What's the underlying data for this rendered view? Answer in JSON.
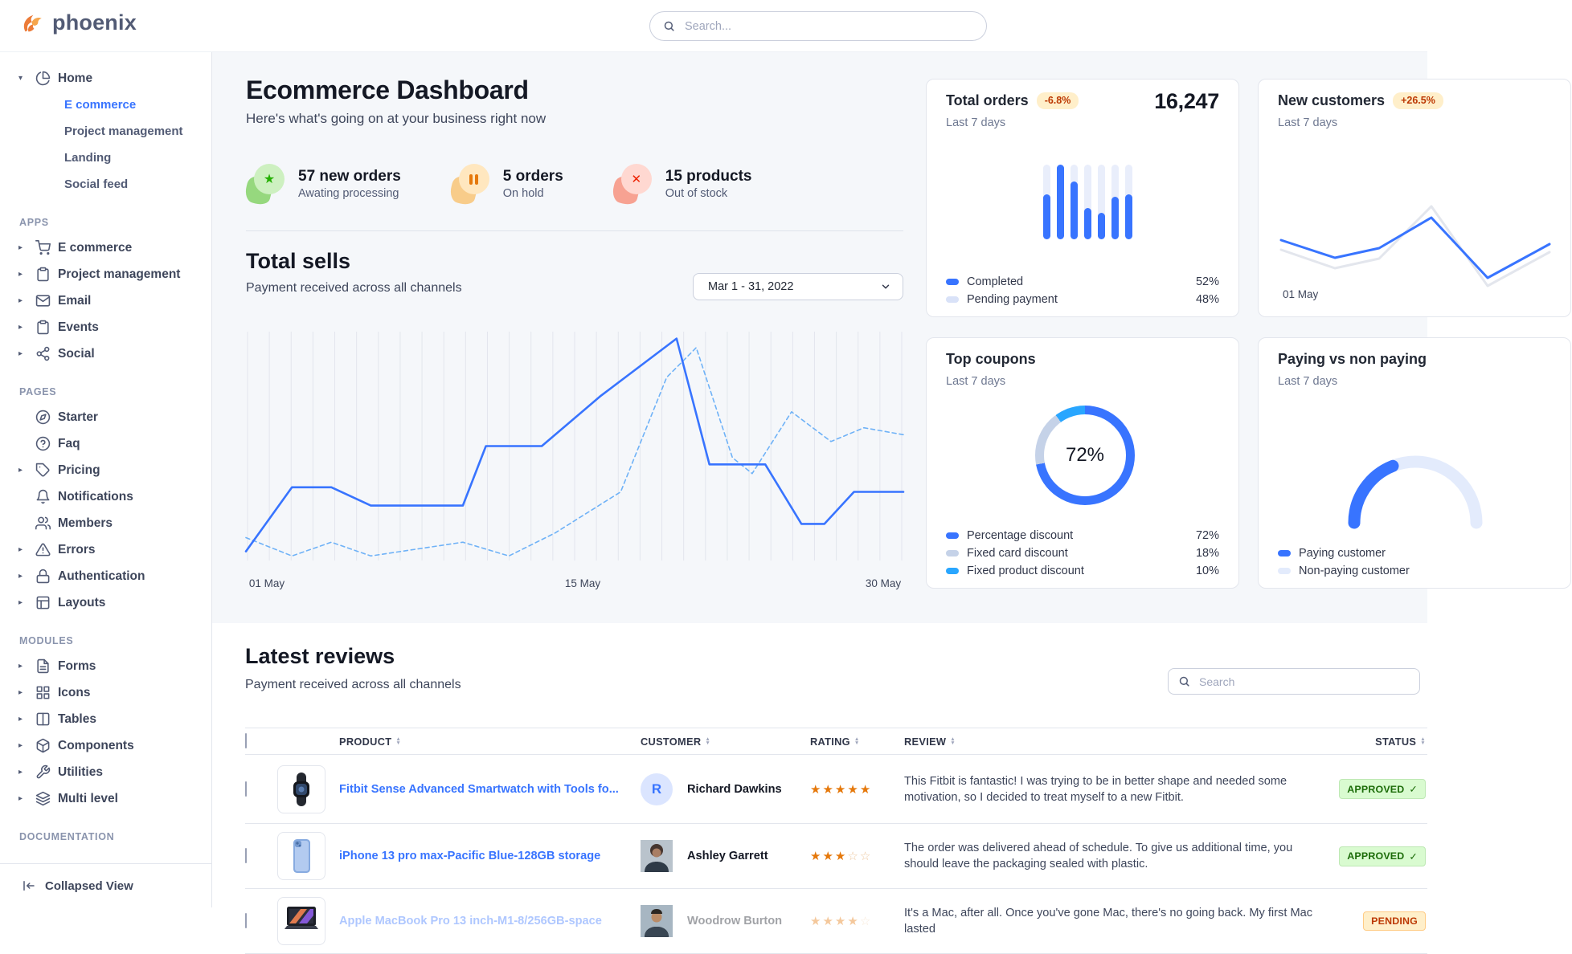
{
  "theme": {
    "primary": "#3874ff",
    "bg": "#f5f7fa",
    "border": "#e3e6ed",
    "success": "#25b003",
    "warning": "#e5780b",
    "danger": "#ed2000",
    "badge_warn_bg": "#ffefca",
    "badge_warn_text": "#bc3803",
    "badge_success_bg": "#d9fbd0",
    "badge_success_text": "#1c6c09"
  },
  "brand": {
    "name": "phoenix"
  },
  "topbar": {
    "search_placeholder": "Search..."
  },
  "sidebar": {
    "home_group": {
      "label": "Home",
      "icon": "pie-chart-icon",
      "children": [
        {
          "label": "E commerce",
          "active": true
        },
        {
          "label": "Project management",
          "active": false
        },
        {
          "label": "Landing",
          "active": false
        },
        {
          "label": "Social feed",
          "active": false
        }
      ]
    },
    "sections": [
      {
        "label": "APPS",
        "items": [
          {
            "label": "E commerce",
            "icon": "cart-icon",
            "caret": true
          },
          {
            "label": "Project management",
            "icon": "clipboard-icon",
            "caret": true
          },
          {
            "label": "Email",
            "icon": "mail-icon",
            "caret": true
          },
          {
            "label": "Events",
            "icon": "clipboard-icon",
            "caret": true
          },
          {
            "label": "Social",
            "icon": "share-icon",
            "caret": true
          }
        ]
      },
      {
        "label": "PAGES",
        "items": [
          {
            "label": "Starter",
            "icon": "compass-icon",
            "caret": false
          },
          {
            "label": "Faq",
            "icon": "question-circle-icon",
            "caret": false
          },
          {
            "label": "Pricing",
            "icon": "tag-icon",
            "caret": true
          },
          {
            "label": "Notifications",
            "icon": "bell-icon",
            "caret": false
          },
          {
            "label": "Members",
            "icon": "users-icon",
            "caret": false
          },
          {
            "label": "Errors",
            "icon": "warning-triangle-icon",
            "caret": true
          },
          {
            "label": "Authentication",
            "icon": "lock-icon",
            "caret": true
          },
          {
            "label": "Layouts",
            "icon": "layout-icon",
            "caret": true
          }
        ]
      },
      {
        "label": "MODULES",
        "items": [
          {
            "label": "Forms",
            "icon": "file-text-icon",
            "caret": true
          },
          {
            "label": "Icons",
            "icon": "grid-icon",
            "caret": true
          },
          {
            "label": "Tables",
            "icon": "columns-icon",
            "caret": true
          },
          {
            "label": "Components",
            "icon": "package-icon",
            "caret": true
          },
          {
            "label": "Utilities",
            "icon": "wrench-icon",
            "caret": true
          },
          {
            "label": "Multi level",
            "icon": "layers-icon",
            "caret": true
          }
        ]
      },
      {
        "label": "DOCUMENTATION",
        "items": []
      }
    ],
    "footer": {
      "label": "Collapsed View",
      "icon": "collapse-left-icon"
    }
  },
  "page_header": {
    "title": "Ecommerce Dashboard",
    "subtitle": "Here's what's going on at your business right now"
  },
  "stats": [
    {
      "value": "57 new orders",
      "caption": "Awating processing",
      "icon": "star-icon",
      "color": "green"
    },
    {
      "value": "5 orders",
      "caption": "On hold",
      "icon": "pause-icon",
      "color": "orange"
    },
    {
      "value": "15 products",
      "caption": "Out of stock",
      "icon": "x-icon",
      "color": "red"
    }
  ],
  "total_sells": {
    "title": "Total sells",
    "subtitle": "Payment received across all channels",
    "date_range": "Mar 1 - 31, 2022",
    "chart_data": {
      "type": "line",
      "x_axis_labels": [
        "01 May",
        "15 May",
        "30 May"
      ],
      "ylim": [
        0,
        100
      ],
      "grid": "vertical",
      "series": [
        {
          "name": "current",
          "style": "solid",
          "color": "#3874ff",
          "points": [
            [
              0,
              4
            ],
            [
              7,
              32
            ],
            [
              13,
              32
            ],
            [
              19,
              24
            ],
            [
              33,
              24
            ],
            [
              36.5,
              50
            ],
            [
              45,
              50
            ],
            [
              54,
              72
            ],
            [
              65.5,
              97
            ],
            [
              70.5,
              42
            ],
            [
              79,
              42
            ],
            [
              84.5,
              16
            ],
            [
              88,
              16
            ],
            [
              92.5,
              30
            ],
            [
              100,
              30
            ]
          ]
        },
        {
          "name": "previous",
          "style": "dashed",
          "color": "#6fb2f7",
          "points": [
            [
              0,
              10
            ],
            [
              7,
              2
            ],
            [
              13,
              8
            ],
            [
              19,
              2
            ],
            [
              33,
              8
            ],
            [
              40,
              2
            ],
            [
              47,
              12
            ],
            [
              57,
              30
            ],
            [
              64,
              80
            ],
            [
              68.5,
              93
            ],
            [
              74,
              45
            ],
            [
              77,
              38
            ],
            [
              83,
              65
            ],
            [
              89,
              52
            ],
            [
              94,
              58
            ],
            [
              100,
              55
            ]
          ]
        }
      ]
    }
  },
  "cards": {
    "total_orders": {
      "title": "Total orders",
      "badge": "-6.8%",
      "period": "Last 7 days",
      "value": "16,247",
      "chart_data": {
        "type": "bar",
        "values_pct": [
          60,
          100,
          77,
          42,
          35,
          57,
          60
        ]
      },
      "legend": [
        {
          "label": "Completed",
          "value": "52%",
          "color": "#3874ff"
        },
        {
          "label": "Pending payment",
          "value": "48%",
          "color": "#d9e2f8"
        }
      ]
    },
    "new_customers": {
      "title": "New customers",
      "badge": "+26.5%",
      "period": "Last 7 days",
      "x_label": "01 May",
      "chart_data": {
        "type": "line",
        "series": [
          {
            "name": "previous",
            "color": "#e3e6ed",
            "points": [
              [
                28,
                212
              ],
              [
                95,
                235
              ],
              [
                150,
                223
              ],
              [
                215,
                158
              ],
              [
                285,
                257
              ],
              [
                362,
                215
              ]
            ]
          },
          {
            "name": "current",
            "color": "#3874ff",
            "points": [
              [
                28,
                200
              ],
              [
                95,
                222
              ],
              [
                150,
                210
              ],
              [
                215,
                172
              ],
              [
                285,
                247
              ],
              [
                362,
                205
              ]
            ]
          }
        ]
      }
    },
    "top_coupons": {
      "title": "Top coupons",
      "period": "Last 7 days",
      "center_label": "72%",
      "chart_data": {
        "type": "pie",
        "values": [
          72,
          18,
          10
        ],
        "colors": [
          "#3874ff",
          "#c5d2e8",
          "#29a6ff"
        ]
      },
      "legend": [
        {
          "label": "Percentage discount",
          "value": "72%",
          "color": "#3874ff"
        },
        {
          "label": "Fixed card discount",
          "value": "18%",
          "color": "#c5d2e8"
        },
        {
          "label": "Fixed product discount",
          "value": "10%",
          "color": "#29a6ff"
        }
      ]
    },
    "paying": {
      "title": "Paying vs non paying",
      "period": "Last 7 days",
      "chart_data": {
        "type": "gauge",
        "value_pct": 38,
        "color": "#3874ff",
        "track": "#e3ebfc"
      },
      "legend": [
        {
          "label": "Paying customer",
          "color": "#3874ff"
        },
        {
          "label": "Non-paying customer",
          "color": "#e3ebfc"
        }
      ]
    }
  },
  "reviews": {
    "title": "Latest reviews",
    "subtitle": "Payment received across all channels",
    "search_placeholder": "Search",
    "columns": [
      "PRODUCT",
      "CUSTOMER",
      "RATING",
      "REVIEW",
      "STATUS"
    ],
    "rows": [
      {
        "product": "Fitbit Sense Advanced Smartwatch with Tools fo...",
        "product_image": "smartwatch",
        "customer": "Richard Dawkins",
        "avatar": {
          "type": "initial",
          "text": "R"
        },
        "rating": {
          "full": 5,
          "empty": 0
        },
        "review": "This Fitbit is fantastic! I was trying to be in better shape and needed some motivation, so I decided to treat myself to a new Fitbit.",
        "status": {
          "label": "APPROVED",
          "state": "success",
          "check": true
        },
        "faded": false
      },
      {
        "product": "iPhone 13 pro max-Pacific Blue-128GB storage",
        "product_image": "iphone",
        "customer": "Ashley Garrett",
        "avatar": {
          "type": "photo",
          "variant": "woman"
        },
        "rating": {
          "full": 3,
          "empty": 2
        },
        "review": "The order was delivered ahead of schedule. To give us additional time, you should leave the packaging sealed with plastic.",
        "status": {
          "label": "APPROVED",
          "state": "success",
          "check": true
        },
        "faded": false
      },
      {
        "product": "Apple MacBook Pro 13 inch-M1-8/256GB-space",
        "product_image": "macbook",
        "customer": "Woodrow Burton",
        "avatar": {
          "type": "photo",
          "variant": "man"
        },
        "rating": {
          "full": 4,
          "empty": 1
        },
        "review": "It's a Mac, after all. Once you've gone Mac, there's no going back. My first Mac lasted",
        "status": {
          "label": "PENDING",
          "state": "warning",
          "check": false
        },
        "faded": true
      }
    ]
  }
}
